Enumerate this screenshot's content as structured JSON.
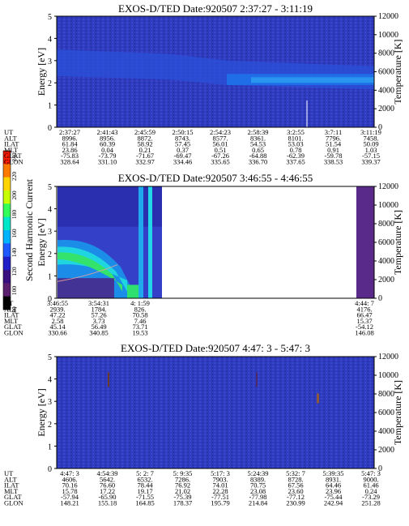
{
  "colors": {
    "background_blue": "#2e3bbd",
    "purple": "#5a2a8a",
    "cyan": "#22d8e8",
    "green": "#2ee06a",
    "text": "#000000"
  },
  "labels": {
    "energy": "Energy [eV]",
    "temperature": "Temperature [K]",
    "colorbar": "Second Harmonic Current"
  },
  "colorbar": {
    "ticks": [
      "240",
      "220",
      "200",
      "180",
      "160",
      "140",
      "120",
      "100",
      "80"
    ],
    "colors": [
      "#ff1a00",
      "#ff7a00",
      "#ffd400",
      "#c8ff00",
      "#34ff5a",
      "#00e6c8",
      "#00b4ff",
      "#1e5aff",
      "#2020c8",
      "#3a1080",
      "#5a1f6e",
      "#000000"
    ]
  },
  "chart_data": [
    {
      "type": "heatmap",
      "title": "EXOS-D/TED   Date:920507   2:37:27 - 3:11:19",
      "ylabel": "Energy [eV]",
      "ylabel_right": "Temperature [K]",
      "ylim": [
        0,
        5
      ],
      "yticks": [
        "0",
        "1",
        "2",
        "3",
        "4",
        "5"
      ],
      "ylim_right": [
        0,
        12000
      ],
      "yticks_right": [
        "0",
        "2000",
        "4000",
        "6000",
        "8000",
        "10000",
        "12000"
      ],
      "rows": [
        {
          "name": "UT",
          "values": [
            "2:37:27",
            "2:41:43",
            "2:45:59",
            "2:50:15",
            "2:54:23",
            "2:58:39",
            "3:2:55",
            "3:7:11",
            "3:11:19"
          ]
        },
        {
          "name": "ALT",
          "values": [
            "8996.",
            "8956.",
            "8872.",
            "8743.",
            "8577.",
            "8361.",
            "8101.",
            "7796.",
            "7458."
          ]
        },
        {
          "name": "ILAT",
          "values": [
            "61.84",
            "60.39",
            "58.92",
            "57.45",
            "56.01",
            "54.53",
            "53.03",
            "51.54",
            "50.09"
          ]
        },
        {
          "name": "MLT",
          "values": [
            "23.86",
            "0.04",
            "0.21",
            "0.37",
            "0.51",
            "0.65",
            "0.78",
            "0.91",
            "1.03"
          ]
        },
        {
          "name": "GLAT",
          "values": [
            "-75.83",
            "-73.79",
            "-71.67",
            "-69.47",
            "-67.26",
            "-64.88",
            "-62.39",
            "-59.78",
            "-57.15"
          ]
        },
        {
          "name": "GLON",
          "values": [
            "328.64",
            "331.10",
            "332.97",
            "334.46",
            "335.65",
            "336.70",
            "337.65",
            "338.53",
            "339.37"
          ]
        }
      ]
    },
    {
      "type": "heatmap",
      "title": "EXOS-D/TED   Date:920507   3:46:55 - 4:46:55",
      "ylabel": "Energy [eV]",
      "ylabel_right": "Temperature [K]",
      "ylim": [
        0,
        5
      ],
      "yticks": [
        "0",
        "1",
        "2",
        "3",
        "4",
        "5"
      ],
      "ylim_right": [
        0,
        12000
      ],
      "yticks_right": [
        "0",
        "2000",
        "4000",
        "6000",
        "8000",
        "10000",
        "12000"
      ],
      "rows": [
        {
          "name": "UT",
          "values": [
            "3:46:55",
            "3:54:31",
            "4: 1:59",
            "4:44: 7"
          ]
        },
        {
          "name": "ALT",
          "values": [
            "2939.",
            "1784.",
            "826.",
            "4176."
          ]
        },
        {
          "name": "ILAT",
          "values": [
            "47.22",
            "57.26",
            "70.58",
            "66.47"
          ]
        },
        {
          "name": "MLT",
          "values": [
            "2.58",
            "3.73",
            "7.46",
            "15.37"
          ]
        },
        {
          "name": "GLAT",
          "values": [
            "45.14",
            "56.49",
            "73.71",
            "-54.12"
          ]
        },
        {
          "name": "GLON",
          "values": [
            "330.66",
            "340.85",
            "19.53",
            "146.08"
          ]
        }
      ]
    },
    {
      "type": "heatmap",
      "title": "EXOS-D/TED   Date:920507   4:47: 3 - 5:47: 3",
      "ylabel": "Energy [eV]",
      "ylabel_right": "Temperature [K]",
      "ylim": [
        0,
        5
      ],
      "yticks": [
        "0",
        "1",
        "2",
        "3",
        "4",
        "5"
      ],
      "ylim_right": [
        0,
        12000
      ],
      "yticks_right": [
        "0",
        "2000",
        "4000",
        "6000",
        "8000",
        "10000",
        "12000"
      ],
      "rows": [
        {
          "name": "UT",
          "values": [
            "4:47: 3",
            "4:54:39",
            "5: 2: 7",
            "5: 9:35",
            "5:17: 3",
            "5:24:39",
            "5:32: 7",
            "5:39:35",
            "5:47: 3"
          ]
        },
        {
          "name": "ALT",
          "values": [
            "4606.",
            "5642.",
            "6532.",
            "7286.",
            "7903.",
            "8389.",
            "8728.",
            "8931.",
            "9000."
          ]
        },
        {
          "name": "ILAT",
          "values": [
            "70.16",
            "76.60",
            "78.44",
            "76.92",
            "74.01",
            "70.75",
            "67.56",
            "64.46",
            "61.46"
          ]
        },
        {
          "name": "MLT",
          "values": [
            "15.78",
            "17.22",
            "19.17",
            "21.02",
            "22.28",
            "23.08",
            "23.60",
            "23.96",
            "0.24"
          ]
        },
        {
          "name": "GLAT",
          "values": [
            "-57.94",
            "-65.90",
            "-71.55",
            "-75.39",
            "-77.51",
            "-77.98",
            "-77.12",
            "-75.44",
            "-73.29"
          ]
        },
        {
          "name": "GLON",
          "values": [
            "148.21",
            "155.18",
            "164.85",
            "178.37",
            "195.79",
            "214.84",
            "230.99",
            "242.94",
            "251.28"
          ]
        }
      ]
    }
  ]
}
